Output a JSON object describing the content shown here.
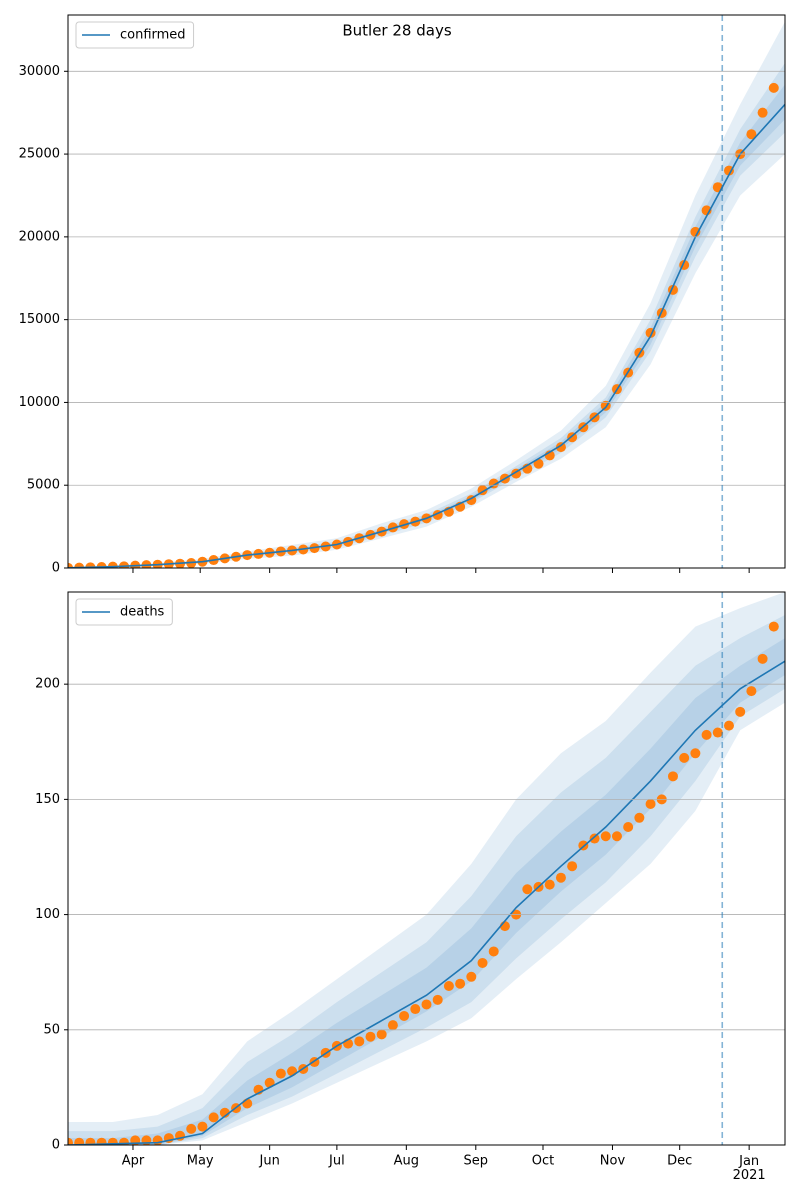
{
  "chart_data": [
    {
      "type": "line",
      "title": "Butler 28 days",
      "xlim": [
        0,
        320
      ],
      "xticks": [
        29,
        59,
        90,
        120,
        151,
        182,
        212,
        243,
        273,
        304
      ],
      "show_xtick_labels": false,
      "ylim": [
        0,
        33400
      ],
      "yticks": [
        0,
        5000,
        10000,
        15000,
        20000,
        25000,
        30000
      ],
      "grid": true,
      "legend": "upper left",
      "vline_x": 292,
      "series": [
        {
          "name": "confirmed",
          "color": "#1f77b4",
          "x": [
            0,
            20,
            40,
            60,
            80,
            100,
            120,
            140,
            160,
            180,
            200,
            220,
            240,
            260,
            280,
            300,
            320
          ],
          "values": [
            10,
            80,
            200,
            380,
            780,
            1060,
            1420,
            2200,
            3000,
            4200,
            5800,
            7400,
            9700,
            14000,
            20000,
            25000,
            28000
          ]
        }
      ],
      "bands": [
        {
          "lower": [
            0,
            30,
            120,
            250,
            550,
            750,
            1100,
            1800,
            2500,
            3700,
            5200,
            6600,
            8500,
            12300,
            17800,
            22500,
            25000
          ],
          "upper": [
            50,
            150,
            300,
            550,
            1000,
            1400,
            1800,
            2700,
            3500,
            4800,
            6500,
            8300,
            11000,
            16000,
            22500,
            28000,
            33000
          ]
        },
        {
          "lower": [
            0,
            50,
            150,
            300,
            680,
            900,
            1250,
            1950,
            2750,
            3950,
            5450,
            6950,
            9100,
            13100,
            18800,
            23700,
            26300
          ],
          "upper": [
            30,
            110,
            250,
            460,
            880,
            1220,
            1600,
            2450,
            3250,
            4500,
            6150,
            7850,
            10300,
            15000,
            21200,
            26500,
            30500
          ]
        },
        {
          "lower": [
            5,
            65,
            175,
            340,
            730,
            980,
            1330,
            2080,
            2880,
            4050,
            5630,
            7180,
            9400,
            13500,
            19400,
            24300,
            27100
          ],
          "upper": [
            20,
            95,
            225,
            420,
            830,
            1140,
            1510,
            2320,
            3120,
            4350,
            5970,
            7620,
            10000,
            14500,
            20600,
            25700,
            29200
          ]
        }
      ],
      "band_color": "#1f77b4",
      "points": {
        "color": "#ff7f0e",
        "x": [
          0,
          5,
          10,
          15,
          20,
          25,
          30,
          35,
          40,
          45,
          50,
          55,
          60,
          65,
          70,
          75,
          80,
          85,
          90,
          95,
          100,
          105,
          110,
          115,
          120,
          125,
          130,
          135,
          140,
          145,
          150,
          155,
          160,
          165,
          170,
          175,
          180,
          185,
          190,
          195,
          200,
          205,
          210,
          215,
          220,
          225,
          230,
          235,
          240,
          245,
          250,
          255,
          260,
          265,
          270,
          275,
          280,
          285,
          290,
          295,
          300,
          305,
          310,
          315
        ],
        "values": [
          10,
          20,
          40,
          60,
          80,
          100,
          140,
          170,
          200,
          230,
          260,
          300,
          380,
          480,
          580,
          680,
          780,
          850,
          920,
          1000,
          1060,
          1120,
          1200,
          1300,
          1420,
          1580,
          1800,
          2000,
          2200,
          2450,
          2650,
          2800,
          3000,
          3200,
          3400,
          3700,
          4100,
          4700,
          5100,
          5400,
          5700,
          6000,
          6300,
          6800,
          7300,
          7900,
          8500,
          9100,
          9800,
          10800,
          11800,
          13000,
          14200,
          15400,
          16800,
          18300,
          20300,
          21600,
          23000,
          24000,
          25000,
          26200,
          27500,
          29000
        ]
      }
    },
    {
      "type": "line",
      "xlim": [
        0,
        320
      ],
      "xticks": [
        {
          "value": 29,
          "label": "Apr"
        },
        {
          "value": 59,
          "label": "May"
        },
        {
          "value": 90,
          "label": "Jun"
        },
        {
          "value": 120,
          "label": "Jul"
        },
        {
          "value": 151,
          "label": "Aug"
        },
        {
          "value": 182,
          "label": "Sep"
        },
        {
          "value": 212,
          "label": "Oct"
        },
        {
          "value": 243,
          "label": "Nov"
        },
        {
          "value": 273,
          "label": "Dec"
        },
        {
          "value": 304,
          "label": "Jan\n2021"
        }
      ],
      "show_xtick_labels": true,
      "ylim": [
        0,
        240
      ],
      "yticks": [
        0,
        50,
        100,
        150,
        200
      ],
      "grid": true,
      "legend": "upper left",
      "vline_x": 292,
      "series": [
        {
          "name": "deaths",
          "color": "#1f77b4",
          "x": [
            0,
            20,
            40,
            60,
            80,
            100,
            120,
            140,
            160,
            180,
            200,
            220,
            240,
            260,
            280,
            300,
            320
          ],
          "values": [
            0,
            0.5,
            1,
            5,
            20,
            30,
            43,
            54,
            65,
            80,
            103,
            121,
            138,
            158,
            180,
            198,
            210
          ]
        }
      ],
      "bands": [
        {
          "lower": [
            0,
            0,
            0,
            2,
            10,
            18,
            27,
            36,
            45,
            55,
            72,
            88,
            105,
            122,
            145,
            180,
            192
          ],
          "upper": [
            10,
            10,
            13,
            22,
            45,
            58,
            72,
            86,
            100,
            122,
            150,
            170,
            184,
            205,
            225,
            233,
            240
          ]
        },
        {
          "lower": [
            0,
            0,
            0,
            3,
            13,
            21,
            31,
            41,
            51,
            62,
            81,
            98,
            114,
            134,
            158,
            186,
            198
          ],
          "upper": [
            6,
            6,
            8,
            16,
            36,
            48,
            62,
            75,
            88,
            108,
            134,
            153,
            168,
            188,
            208,
            220,
            230
          ]
        },
        {
          "lower": [
            0,
            0,
            0,
            4,
            16,
            25,
            36,
            47,
            58,
            71,
            92,
            110,
            126,
            146,
            170,
            192,
            204
          ],
          "upper": [
            3,
            3,
            5,
            11,
            28,
            40,
            53,
            65,
            77,
            94,
            118,
            136,
            152,
            172,
            194,
            208,
            220
          ]
        }
      ],
      "band_color": "#1f77b4",
      "points": {
        "color": "#ff7f0e",
        "x": [
          0,
          5,
          10,
          15,
          20,
          25,
          30,
          35,
          40,
          45,
          50,
          55,
          60,
          65,
          70,
          75,
          80,
          85,
          90,
          95,
          100,
          105,
          110,
          115,
          120,
          125,
          130,
          135,
          140,
          145,
          150,
          155,
          160,
          165,
          170,
          175,
          180,
          185,
          190,
          195,
          200,
          205,
          210,
          215,
          220,
          225,
          230,
          235,
          240,
          245,
          250,
          255,
          260,
          265,
          270,
          275,
          280,
          285,
          290,
          295,
          300,
          305,
          310,
          315
        ],
        "values": [
          1,
          1,
          1,
          1,
          1,
          1,
          2,
          2,
          2,
          3,
          4,
          7,
          8,
          12,
          14,
          16,
          18,
          24,
          27,
          31,
          32,
          33,
          36,
          40,
          43,
          44,
          45,
          47,
          48,
          52,
          56,
          59,
          61,
          63,
          69,
          70,
          73,
          79,
          84,
          95,
          100,
          111,
          112,
          113,
          116,
          121,
          130,
          133,
          134,
          134,
          138,
          142,
          148,
          150,
          160,
          168,
          170,
          178,
          179,
          182,
          188,
          197,
          211,
          225
        ]
      }
    }
  ]
}
